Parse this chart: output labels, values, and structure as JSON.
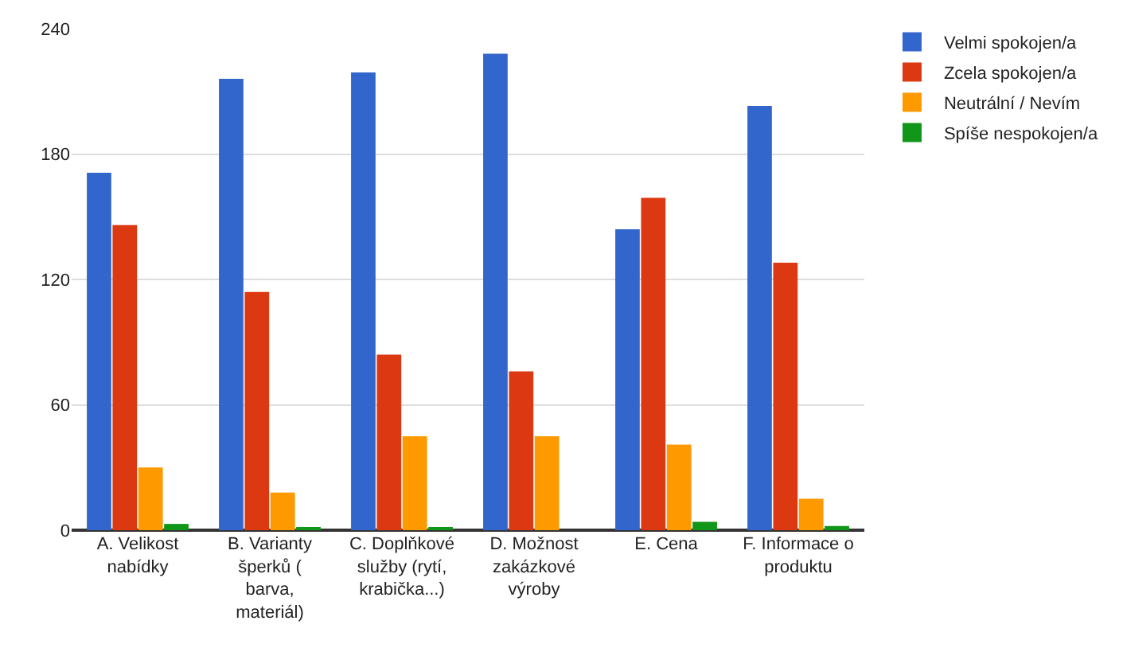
{
  "chart_data": {
    "type": "bar",
    "categories": [
      "A. Velikost nabídky",
      "B. Varianty šperků ( barva, materiál)",
      "C. Doplňkové služby (rytí, krabička...)",
      "D. Možnost zakázkové výroby",
      "E. Cena",
      "F. Informace o produktu"
    ],
    "series": [
      {
        "name": "Velmi spokojen/a",
        "color": "#3366cc",
        "values": [
          171,
          216,
          219,
          228,
          144,
          203
        ]
      },
      {
        "name": "Zcela spokojen/a",
        "color": "#dc3912",
        "values": [
          146,
          114,
          84,
          76,
          159,
          128
        ]
      },
      {
        "name": "Neutrální / Nevím",
        "color": "#ff9900",
        "values": [
          30,
          18,
          45,
          45,
          41,
          15
        ]
      },
      {
        "name": "Spíše nespokojen/a",
        "color": "#109618",
        "values": [
          3,
          1,
          1,
          0,
          4,
          2
        ]
      }
    ],
    "ylim": [
      0,
      240
    ],
    "yticks": [
      0,
      60,
      120,
      180,
      240
    ],
    "grid": "y",
    "legend": "top right"
  }
}
